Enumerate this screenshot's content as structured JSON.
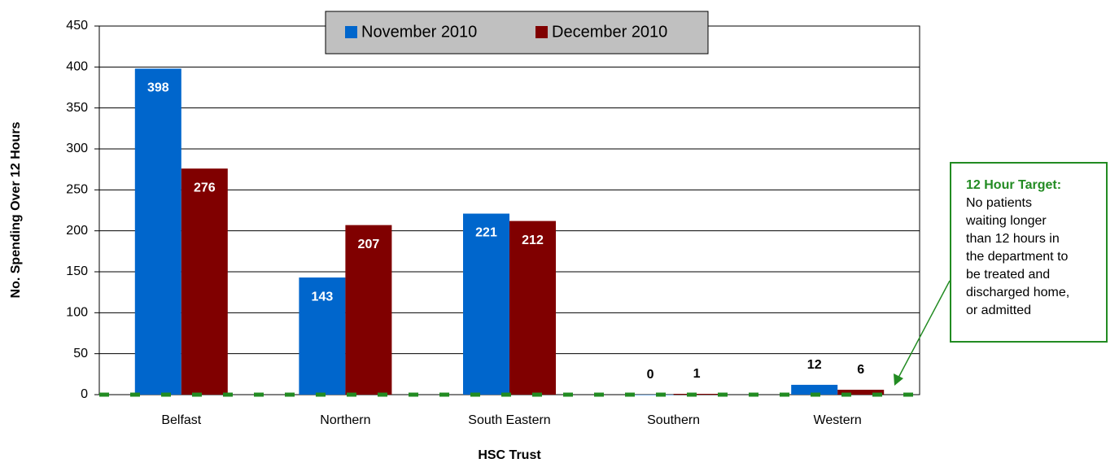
{
  "chart_data": {
    "type": "bar",
    "y_label": "No. Spending Over 12 Hours",
    "x_label": "HSC Trust",
    "categories": [
      "Belfast",
      "Northern",
      "South Eastern",
      "Southern",
      "Western"
    ],
    "series": [
      {
        "name": "November 2010",
        "color": "#0066cc",
        "values": [
          398,
          143,
          221,
          0,
          12
        ]
      },
      {
        "name": "December 2010",
        "color": "#800000",
        "values": [
          276,
          207,
          212,
          1,
          6
        ]
      }
    ],
    "ylim": [
      0,
      450
    ],
    "yticks": [
      0,
      50,
      100,
      150,
      200,
      250,
      300,
      350,
      400,
      450
    ],
    "grid": true,
    "legend": "top",
    "target_value": 0,
    "target_color": "#228b22",
    "annotation": {
      "title": "12 Hour Target:",
      "lines": [
        "No patients",
        "waiting longer",
        "than 12 hours in",
        "the department to",
        "be treated and",
        "discharged home,",
        "or admitted"
      ]
    }
  }
}
